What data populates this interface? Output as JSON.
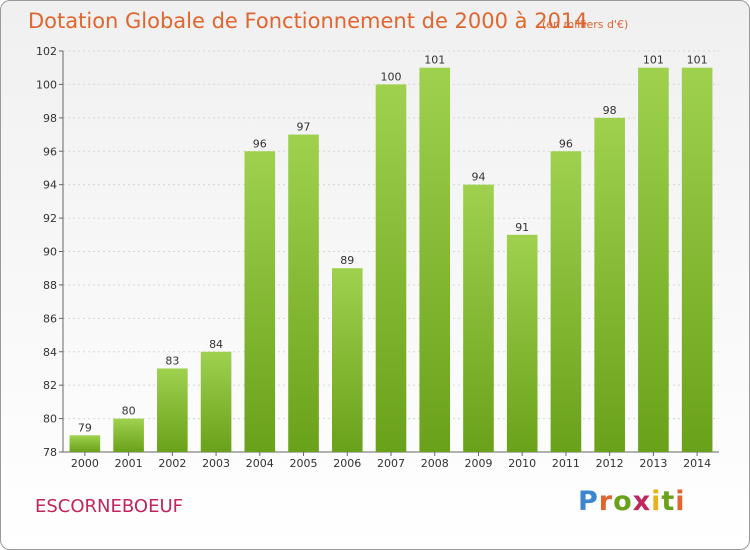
{
  "chart_data": {
    "type": "bar",
    "title": "Dotation Globale de Fonctionnement de 2000 à 2014",
    "subtitle": "(en milliers d'€)",
    "categories": [
      "2000",
      "2001",
      "2002",
      "2003",
      "2004",
      "2005",
      "2006",
      "2007",
      "2008",
      "2009",
      "2010",
      "2011",
      "2012",
      "2013",
      "2014"
    ],
    "values": [
      79,
      80,
      83,
      84,
      96,
      97,
      89,
      100,
      101,
      94,
      91,
      96,
      98,
      101,
      101
    ],
    "ylim": [
      78,
      102
    ],
    "yticks": [
      78,
      80,
      82,
      84,
      86,
      88,
      90,
      92,
      94,
      96,
      98,
      100,
      102
    ],
    "grid": true,
    "bar_color_light": "#9fd14f",
    "bar_color_dark": "#6aa11a"
  },
  "footer": {
    "commune": "ESCORNEBOEUF",
    "logo_text": "Proxiti"
  },
  "colors": {
    "title": "#e0652e",
    "commune": "#c2245c"
  }
}
